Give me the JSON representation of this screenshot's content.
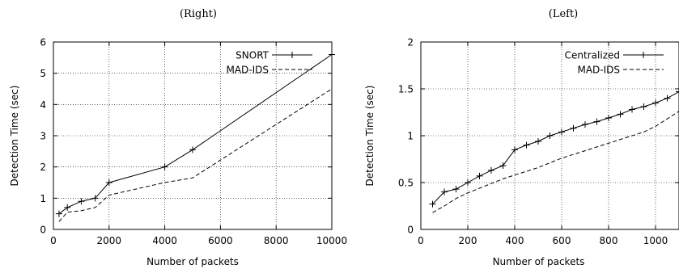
{
  "chart_data": [
    {
      "type": "line",
      "title": "(Right)",
      "xlabel": "Number of packets",
      "ylabel": "Detection Time (sec)",
      "xlim": [
        0,
        10000
      ],
      "ylim": [
        0,
        6
      ],
      "xticks": [
        0,
        2000,
        4000,
        6000,
        8000,
        10000
      ],
      "yticks": [
        0,
        1,
        2,
        3,
        4,
        5,
        6
      ],
      "grid": true,
      "legend_position": "top-right",
      "series": [
        {
          "name": "SNORT",
          "style": "solid-plus",
          "x": [
            200,
            500,
            1000,
            1500,
            2000,
            4000,
            5000,
            10000
          ],
          "y": [
            0.5,
            0.7,
            0.9,
            1.0,
            1.5,
            2.0,
            2.55,
            5.6
          ]
        },
        {
          "name": "MAD-IDS",
          "style": "dashed",
          "x": [
            200,
            500,
            1000,
            1500,
            2000,
            4000,
            5000,
            10000
          ],
          "y": [
            0.25,
            0.55,
            0.6,
            0.7,
            1.1,
            1.5,
            1.65,
            4.5
          ]
        }
      ]
    },
    {
      "type": "line",
      "title": "(Left)",
      "xlabel": "Number of packets",
      "ylabel": "Detection Time (sec)",
      "xlim": [
        0,
        1100
      ],
      "ylim": [
        0,
        2
      ],
      "xticks": [
        0,
        200,
        400,
        600,
        800,
        1000
      ],
      "yticks": [
        0,
        0.5,
        1,
        1.5,
        2
      ],
      "grid": true,
      "legend_position": "top-right",
      "series": [
        {
          "name": "Centralized",
          "style": "solid-plus",
          "x": [
            50,
            100,
            150,
            200,
            250,
            300,
            350,
            400,
            450,
            500,
            550,
            600,
            650,
            700,
            750,
            800,
            850,
            900,
            950,
            1000,
            1050,
            1100
          ],
          "y": [
            0.27,
            0.4,
            0.43,
            0.5,
            0.57,
            0.63,
            0.68,
            0.85,
            0.9,
            0.94,
            1.0,
            1.04,
            1.08,
            1.12,
            1.15,
            1.19,
            1.23,
            1.28,
            1.31,
            1.35,
            1.4,
            1.47
          ]
        },
        {
          "name": "MAD-IDS",
          "style": "dashed",
          "x": [
            50,
            100,
            150,
            200,
            250,
            300,
            350,
            400,
            450,
            500,
            550,
            600,
            650,
            700,
            750,
            800,
            850,
            900,
            950,
            1000,
            1050,
            1100
          ],
          "y": [
            0.18,
            0.25,
            0.33,
            0.39,
            0.44,
            0.49,
            0.54,
            0.58,
            0.62,
            0.66,
            0.71,
            0.76,
            0.8,
            0.84,
            0.88,
            0.92,
            0.96,
            1.0,
            1.04,
            1.1,
            1.18,
            1.26
          ]
        }
      ]
    }
  ]
}
